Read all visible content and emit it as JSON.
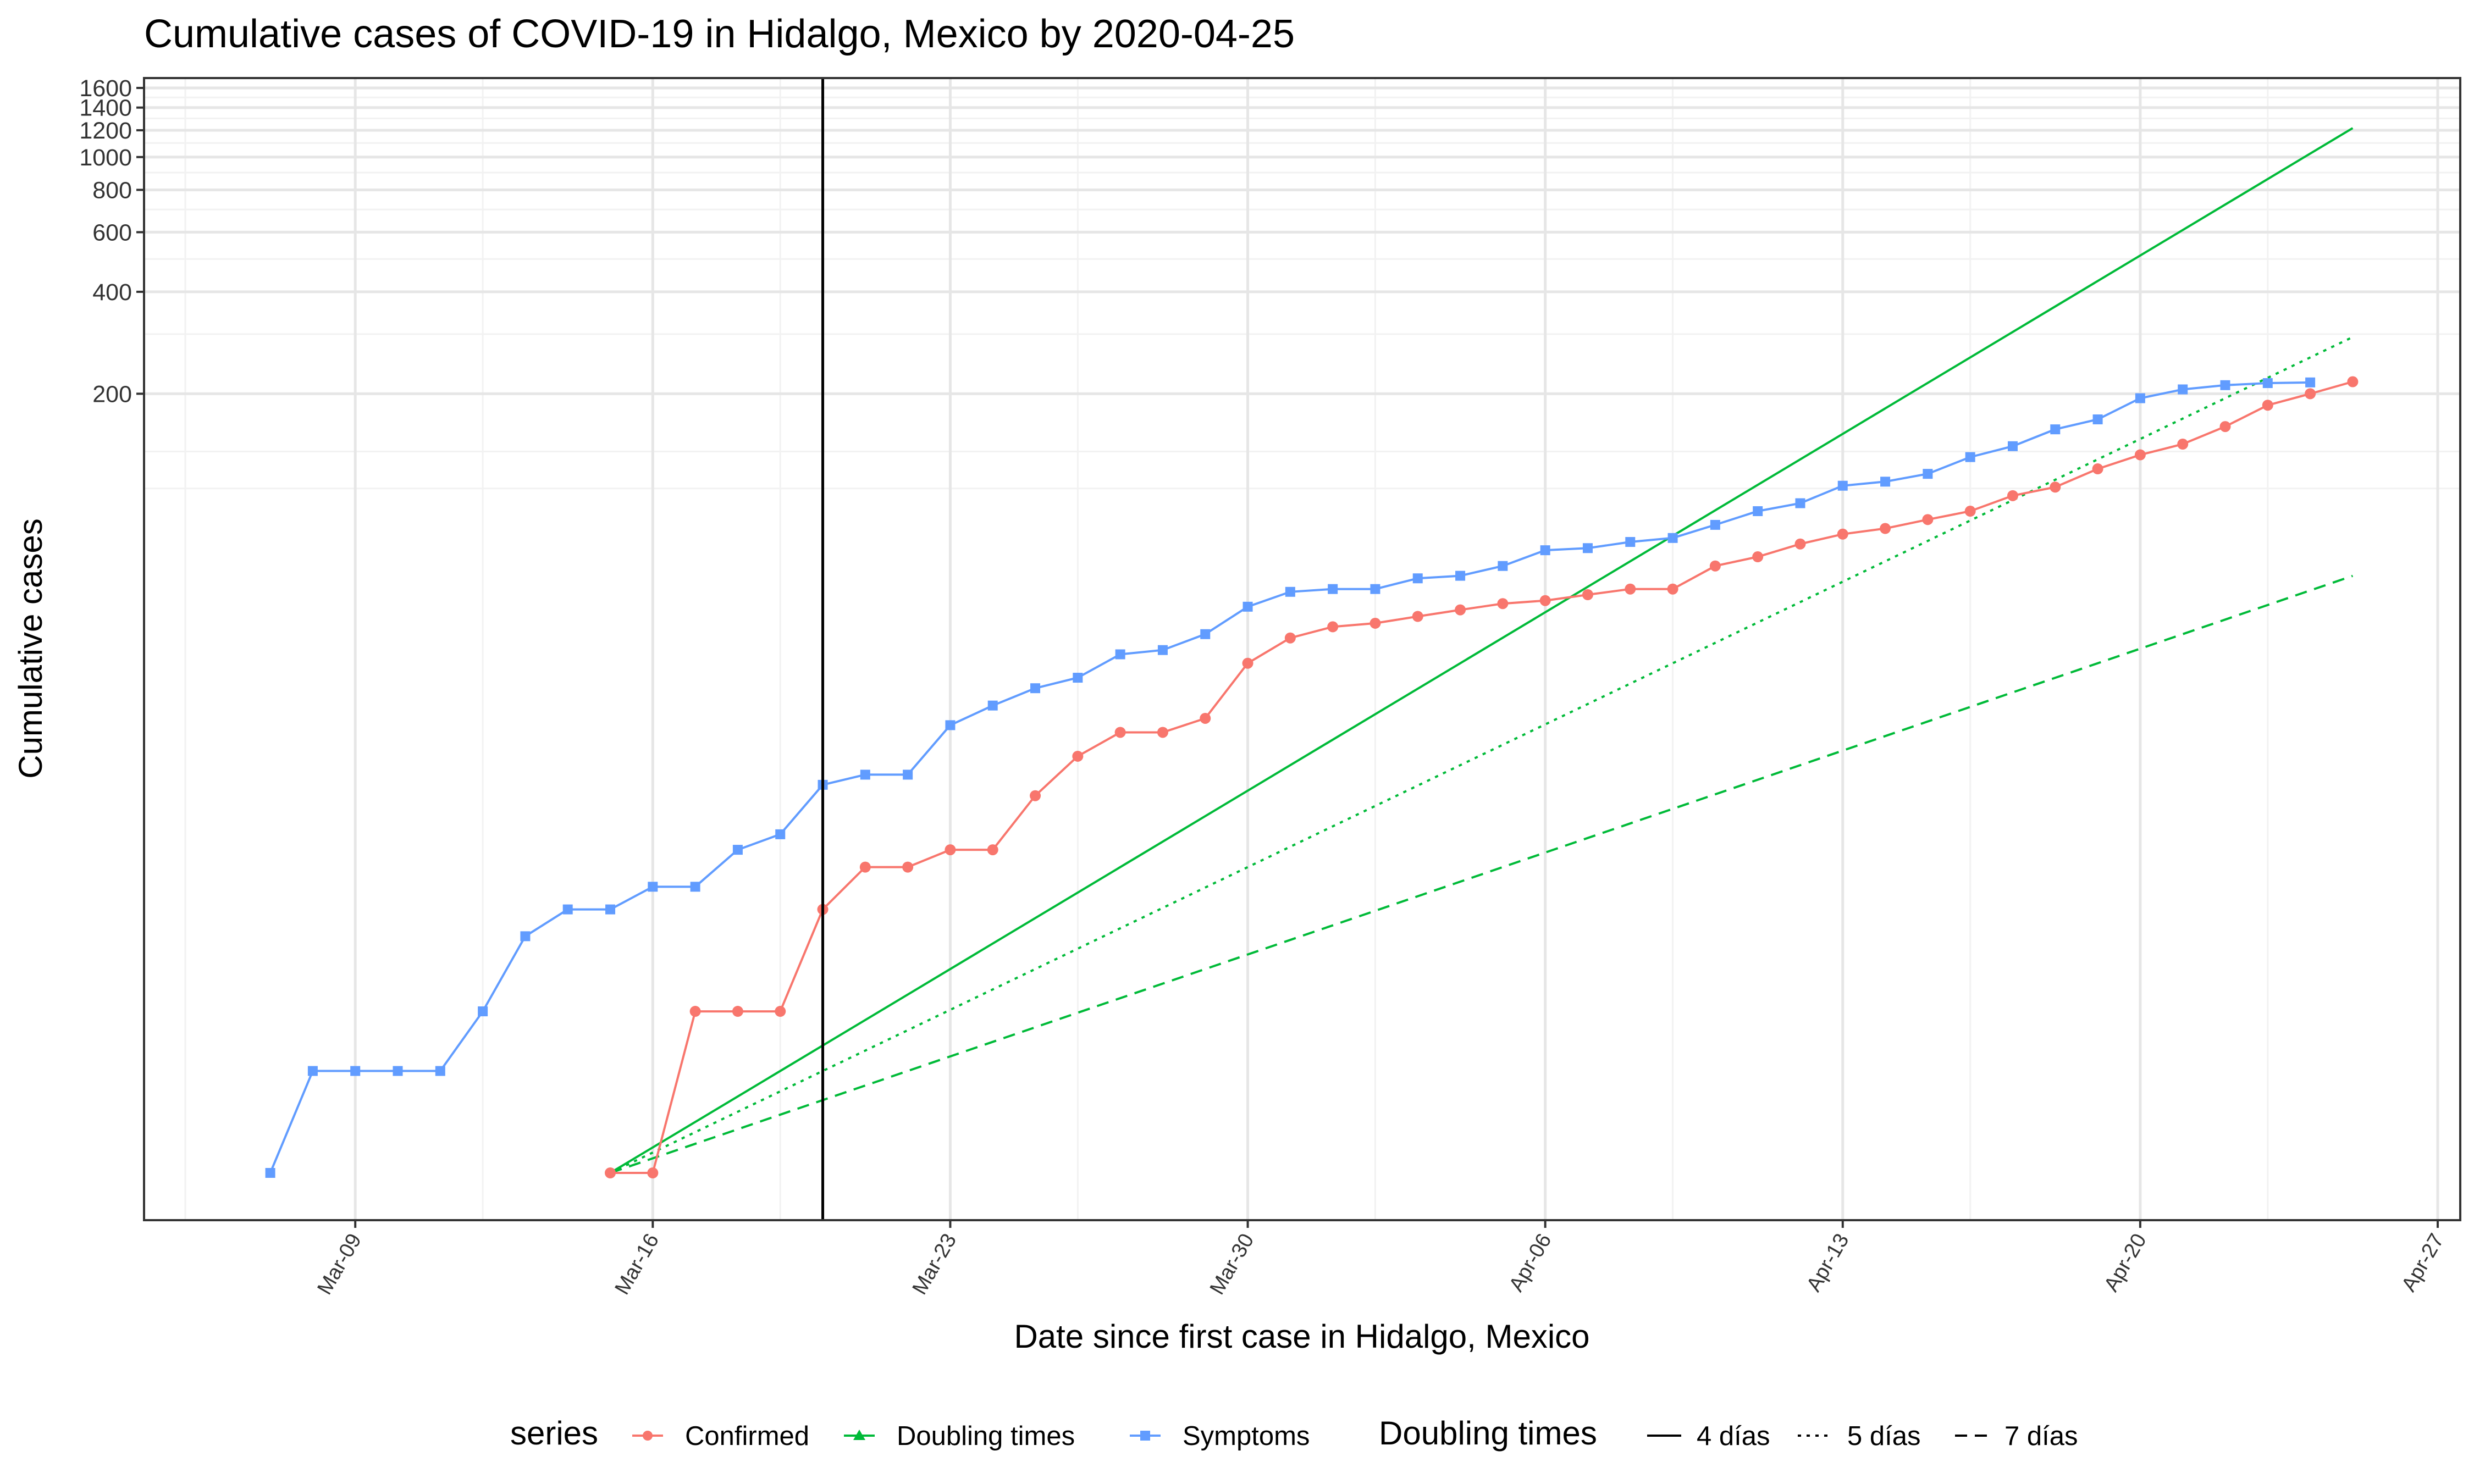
{
  "chart_data": {
    "type": "line",
    "title": "Cumulative cases of COVID-19 in Hidalgo, Mexico by 2020-04-25",
    "xlabel": "Date since first case in Hidalgo, Mexico",
    "ylabel": "Cumulative cases",
    "y_scale": "log",
    "y_ticks": [
      200,
      400,
      600,
      800,
      1000,
      1200,
      1400,
      1600
    ],
    "x_ticks": [
      "Mar-09",
      "Mar-16",
      "Mar-23",
      "Mar-30",
      "Apr-06",
      "Apr-13",
      "Apr-20",
      "Apr-27"
    ],
    "x_range": [
      "2020-03-05",
      "2020-04-27"
    ],
    "y_range": [
      0.8,
      1700
    ],
    "vertical_line": "2020-03-20",
    "grid": true,
    "legend_position": "bottom",
    "series": [
      {
        "name": "Confirmed",
        "color": "#F8766D",
        "marker": "circle",
        "x": [
          "2020-03-15",
          "2020-03-16",
          "2020-03-17",
          "2020-03-18",
          "2020-03-19",
          "2020-03-20",
          "2020-03-21",
          "2020-03-22",
          "2020-03-23",
          "2020-03-24",
          "2020-03-25",
          "2020-03-26",
          "2020-03-27",
          "2020-03-28",
          "2020-03-29",
          "2020-03-30",
          "2020-03-31",
          "2020-04-01",
          "2020-04-02",
          "2020-04-03",
          "2020-04-04",
          "2020-04-05",
          "2020-04-06",
          "2020-04-07",
          "2020-04-08",
          "2020-04-09",
          "2020-04-10",
          "2020-04-11",
          "2020-04-12",
          "2020-04-13",
          "2020-04-14",
          "2020-04-15",
          "2020-04-16",
          "2020-04-17",
          "2020-04-18",
          "2020-04-19",
          "2020-04-20",
          "2020-04-21",
          "2020-04-22",
          "2020-04-23",
          "2020-04-24",
          "2020-04-25"
        ],
        "y": [
          1,
          1,
          3,
          3,
          3,
          6,
          8,
          8,
          9,
          9,
          13,
          17,
          20,
          20,
          22,
          32,
          38,
          41,
          42,
          44,
          46,
          48,
          49,
          51,
          53,
          53,
          62,
          66,
          72,
          77,
          80,
          85,
          90,
          100,
          106,
          120,
          132,
          142,
          160,
          185,
          200,
          217
        ]
      },
      {
        "name": "Symptoms",
        "color": "#619CFF",
        "marker": "square",
        "x": [
          "2020-03-07",
          "2020-03-08",
          "2020-03-09",
          "2020-03-10",
          "2020-03-11",
          "2020-03-12",
          "2020-03-13",
          "2020-03-14",
          "2020-03-15",
          "2020-03-16",
          "2020-03-17",
          "2020-03-18",
          "2020-03-19",
          "2020-03-20",
          "2020-03-21",
          "2020-03-22",
          "2020-03-23",
          "2020-03-24",
          "2020-03-25",
          "2020-03-26",
          "2020-03-27",
          "2020-03-28",
          "2020-03-29",
          "2020-03-30",
          "2020-03-31",
          "2020-04-01",
          "2020-04-02",
          "2020-04-03",
          "2020-04-04",
          "2020-04-05",
          "2020-04-06",
          "2020-04-07",
          "2020-04-08",
          "2020-04-09",
          "2020-04-10",
          "2020-04-11",
          "2020-04-12",
          "2020-04-13",
          "2020-04-14",
          "2020-04-15",
          "2020-04-16",
          "2020-04-17",
          "2020-04-18",
          "2020-04-19",
          "2020-04-20",
          "2020-04-21",
          "2020-04-22",
          "2020-04-23",
          "2020-04-24"
        ],
        "y": [
          1,
          2,
          2,
          2,
          2,
          3,
          5,
          6,
          6,
          7,
          7,
          9,
          10,
          14,
          15,
          15,
          21,
          24,
          27,
          29,
          34,
          35,
          39,
          47,
          52,
          53,
          53,
          57,
          58,
          62,
          69,
          70,
          73,
          75,
          82,
          90,
          95,
          107,
          110,
          116,
          130,
          140,
          157,
          168,
          194,
          206,
          212,
          215,
          216
        ]
      }
    ],
    "doubling_lines": {
      "legend_name": "Doubling times",
      "color": "#00BA38",
      "start_date": "2020-03-15",
      "start_value": 1,
      "end_date": "2020-04-25",
      "lines": [
        {
          "label": "4 días",
          "days": 4,
          "dash": "solid"
        },
        {
          "label": "5 días",
          "days": 5,
          "dash": "dotted"
        },
        {
          "label": "7 días",
          "days": 7,
          "dash": "dashed"
        }
      ]
    }
  },
  "legend": {
    "series_title": "series",
    "series_items": [
      "Confirmed",
      "Doubling times",
      "Symptoms"
    ],
    "linetype_title": "Doubling times",
    "linetype_items": [
      "4 días",
      "5 días",
      "7 días"
    ]
  }
}
